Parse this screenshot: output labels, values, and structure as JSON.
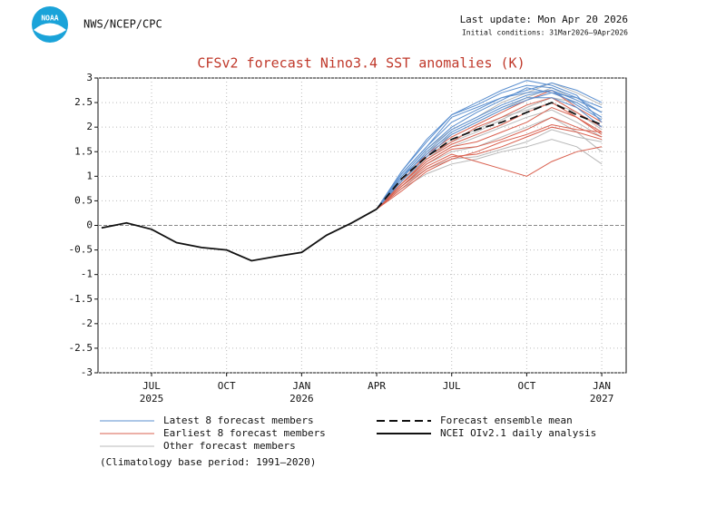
{
  "header": {
    "agency": "NWS/NCEP/CPC",
    "logo_text": "NOAA",
    "last_update": "Last update: Mon Apr 20 2026",
    "initial_conditions": "Initial conditions: 31Mar2026–9Apr2026"
  },
  "chart_data": {
    "type": "line",
    "title": "CFSv2 forecast Nino3.4 SST anomalies (K)",
    "note": "(Climatology base period: 1991–2020)",
    "categories": [
      null,
      null,
      "JUL\n2025",
      null,
      null,
      "OCT",
      null,
      null,
      "JAN\n2026",
      null,
      null,
      "APR",
      null,
      null,
      "JUL",
      null,
      null,
      "OCT",
      null,
      null,
      "JAN\n2027"
    ],
    "ylim": [
      -3,
      3
    ],
    "yticks": [
      -3,
      -2.5,
      -2,
      -1.5,
      -1,
      -0.5,
      0,
      0.5,
      1,
      1.5,
      2,
      2.5,
      3
    ],
    "grid": true,
    "series": [
      {
        "name": "Other forecast members",
        "color": "#b8b8b8",
        "members": [
          [
            null,
            null,
            null,
            null,
            null,
            null,
            null,
            null,
            null,
            null,
            null,
            0.33,
            0.9,
            1.35,
            1.7,
            1.9,
            2.15,
            2.4,
            2.6,
            2.5,
            2.2
          ],
          [
            null,
            null,
            null,
            null,
            null,
            null,
            null,
            null,
            null,
            null,
            null,
            0.33,
            0.75,
            1.05,
            1.25,
            1.35,
            1.5,
            1.6,
            1.75,
            1.6,
            1.25
          ],
          [
            null,
            null,
            null,
            null,
            null,
            null,
            null,
            null,
            null,
            null,
            null,
            0.33,
            1.0,
            1.55,
            1.95,
            2.2,
            2.5,
            2.7,
            2.9,
            2.7,
            2.45
          ],
          [
            null,
            null,
            null,
            null,
            null,
            null,
            null,
            null,
            null,
            null,
            null,
            0.33,
            0.85,
            1.25,
            1.5,
            1.6,
            1.8,
            2.0,
            2.2,
            1.9,
            1.5
          ],
          [
            null,
            null,
            null,
            null,
            null,
            null,
            null,
            null,
            null,
            null,
            null,
            0.33,
            0.95,
            1.5,
            1.85,
            2.1,
            2.35,
            2.6,
            2.8,
            2.55,
            2.3
          ],
          [
            null,
            null,
            null,
            null,
            null,
            null,
            null,
            null,
            null,
            null,
            null,
            0.33,
            0.8,
            1.15,
            1.35,
            1.4,
            1.55,
            1.7,
            1.95,
            1.8,
            1.7
          ],
          [
            null,
            null,
            null,
            null,
            null,
            null,
            null,
            null,
            null,
            null,
            null,
            0.33,
            0.9,
            1.4,
            1.75,
            1.95,
            2.2,
            2.35,
            2.5,
            2.3,
            1.95
          ],
          [
            null,
            null,
            null,
            null,
            null,
            null,
            null,
            null,
            null,
            null,
            null,
            0.33,
            0.85,
            1.3,
            1.6,
            1.8,
            2.0,
            2.2,
            2.35,
            2.1,
            1.8
          ]
        ]
      },
      {
        "name": "Earliest 8 forecast members",
        "color": "#d9604f",
        "members": [
          [
            null,
            null,
            null,
            null,
            null,
            null,
            null,
            null,
            null,
            null,
            null,
            0.33,
            0.85,
            1.3,
            1.6,
            1.7,
            1.9,
            2.1,
            2.4,
            2.2,
            1.9
          ],
          [
            null,
            null,
            null,
            null,
            null,
            null,
            null,
            null,
            null,
            null,
            null,
            0.33,
            0.8,
            1.2,
            1.45,
            1.3,
            1.15,
            1.0,
            1.3,
            1.5,
            1.6
          ],
          [
            null,
            null,
            null,
            null,
            null,
            null,
            null,
            null,
            null,
            null,
            null,
            0.33,
            0.9,
            1.4,
            1.7,
            2.0,
            2.2,
            2.45,
            2.6,
            2.3,
            2.0
          ],
          [
            null,
            null,
            null,
            null,
            null,
            null,
            null,
            null,
            null,
            null,
            null,
            0.33,
            0.75,
            1.15,
            1.4,
            1.45,
            1.6,
            1.8,
            2.0,
            1.9,
            1.75
          ],
          [
            null,
            null,
            null,
            null,
            null,
            null,
            null,
            null,
            null,
            null,
            null,
            0.33,
            0.85,
            1.35,
            1.65,
            1.85,
            2.05,
            2.3,
            2.5,
            2.2,
            1.85
          ],
          [
            null,
            null,
            null,
            null,
            null,
            null,
            null,
            null,
            null,
            null,
            null,
            0.33,
            0.8,
            1.25,
            1.55,
            1.6,
            1.75,
            1.95,
            2.2,
            2.0,
            1.8
          ],
          [
            null,
            null,
            null,
            null,
            null,
            null,
            null,
            null,
            null,
            null,
            null,
            0.33,
            0.9,
            1.45,
            1.8,
            2.05,
            2.3,
            2.55,
            2.75,
            2.4,
            2.1
          ],
          [
            null,
            null,
            null,
            null,
            null,
            null,
            null,
            null,
            null,
            null,
            null,
            0.33,
            0.7,
            1.1,
            1.35,
            1.5,
            1.7,
            1.85,
            2.05,
            1.95,
            1.9
          ]
        ]
      },
      {
        "name": "Latest 8 forecast members",
        "color": "#5b8fcf",
        "members": [
          [
            null,
            null,
            null,
            null,
            null,
            null,
            null,
            null,
            null,
            null,
            null,
            0.33,
            1.1,
            1.7,
            2.25,
            2.45,
            2.7,
            2.85,
            2.8,
            2.6,
            2.3
          ],
          [
            null,
            null,
            null,
            null,
            null,
            null,
            null,
            null,
            null,
            null,
            null,
            0.33,
            1.05,
            1.6,
            2.2,
            2.4,
            2.6,
            2.75,
            2.9,
            2.75,
            2.5
          ],
          [
            null,
            null,
            null,
            null,
            null,
            null,
            null,
            null,
            null,
            null,
            null,
            0.33,
            1.0,
            1.55,
            2.0,
            2.3,
            2.55,
            2.8,
            2.7,
            2.5,
            2.2
          ],
          [
            null,
            null,
            null,
            null,
            null,
            null,
            null,
            null,
            null,
            null,
            null,
            0.33,
            0.95,
            1.5,
            1.95,
            2.2,
            2.45,
            2.65,
            2.75,
            2.55,
            2.3
          ],
          [
            null,
            null,
            null,
            null,
            null,
            null,
            null,
            null,
            null,
            null,
            null,
            0.33,
            1.1,
            1.75,
            2.25,
            2.5,
            2.75,
            2.95,
            2.85,
            2.65,
            2.1
          ],
          [
            null,
            null,
            null,
            null,
            null,
            null,
            null,
            null,
            null,
            null,
            null,
            0.33,
            1.0,
            1.45,
            1.9,
            2.15,
            2.4,
            2.6,
            2.6,
            2.4,
            2.0
          ],
          [
            null,
            null,
            null,
            null,
            null,
            null,
            null,
            null,
            null,
            null,
            null,
            0.33,
            0.9,
            1.4,
            1.85,
            2.1,
            2.35,
            2.55,
            2.7,
            2.6,
            2.4
          ],
          [
            null,
            null,
            null,
            null,
            null,
            null,
            null,
            null,
            null,
            null,
            null,
            0.33,
            1.05,
            1.6,
            2.1,
            2.35,
            2.6,
            2.7,
            2.75,
            2.45,
            2.15
          ]
        ]
      },
      {
        "name": "Forecast ensemble mean",
        "color": "#111111",
        "dashed": true,
        "values": [
          null,
          null,
          null,
          null,
          null,
          null,
          null,
          null,
          null,
          null,
          null,
          0.33,
          0.95,
          1.4,
          1.75,
          1.95,
          2.1,
          2.3,
          2.5,
          2.25,
          2.05
        ]
      },
      {
        "name": "NCEI OIv2.1 daily analysis",
        "color": "#111111",
        "dashed": false,
        "values": [
          -0.05,
          0.05,
          -0.08,
          -0.35,
          -0.45,
          -0.5,
          -0.72,
          -0.63,
          -0.55,
          -0.2,
          0.05,
          0.33,
          null,
          null,
          null,
          null,
          null,
          null,
          null,
          null,
          null
        ]
      }
    ]
  }
}
